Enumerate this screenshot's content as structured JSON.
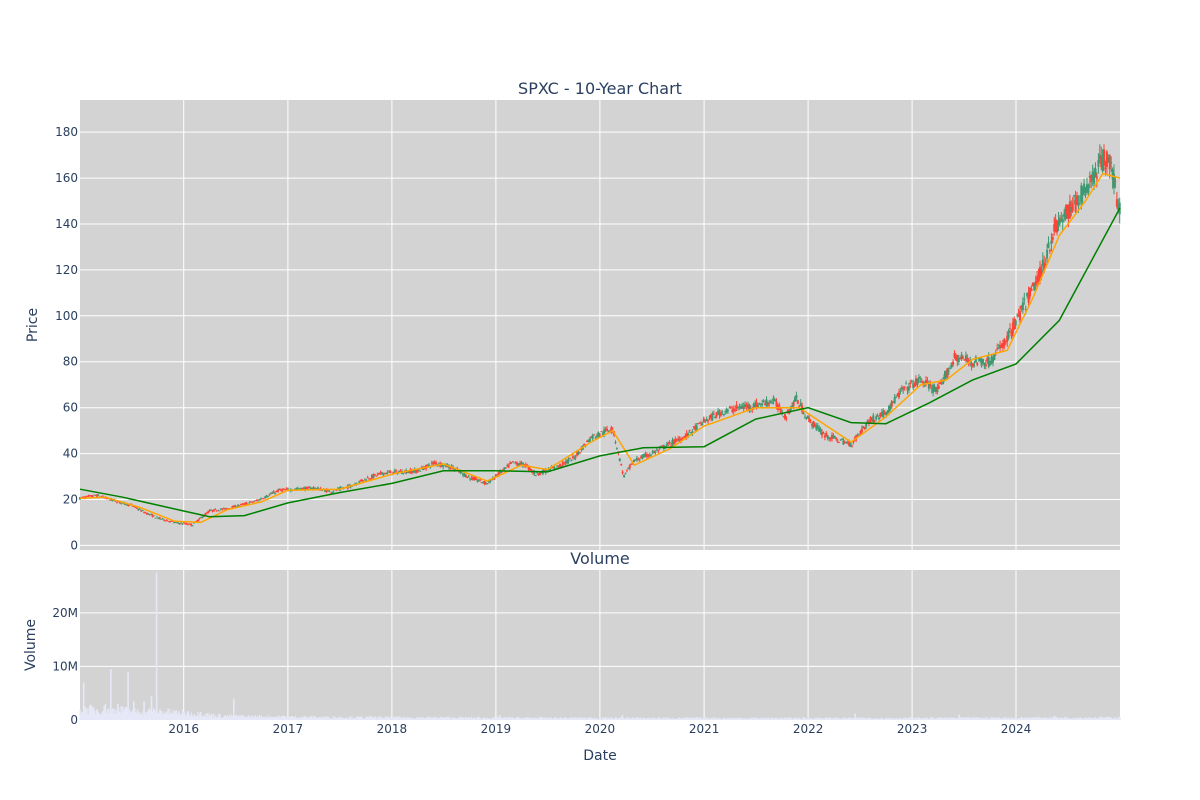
{
  "chart_data": [
    {
      "type": "candlestick",
      "title": "SPXC - 10-Year Chart",
      "ylabel": "Price",
      "xlabel": "",
      "ylim": [
        -2,
        194
      ],
      "xlim": [
        "2015-01-02",
        "2024-12-31"
      ],
      "grid": true,
      "colors": {
        "background": "#d3d3d3",
        "up": "#3d9970",
        "down": "#ff4136",
        "ma_short": "#ffa500",
        "ma_long": "#008000"
      },
      "yticks": [
        {
          "value": 0,
          "label": "0"
        },
        {
          "value": 20,
          "label": "20"
        },
        {
          "value": 40,
          "label": "40"
        },
        {
          "value": 60,
          "label": "60"
        },
        {
          "value": 80,
          "label": "80"
        },
        {
          "value": 100,
          "label": "100"
        },
        {
          "value": 120,
          "label": "120"
        },
        {
          "value": 140,
          "label": "140"
        },
        {
          "value": 160,
          "label": "160"
        },
        {
          "value": 180,
          "label": "180"
        }
      ],
      "price_points": [
        [
          "2015-01-02",
          20.5
        ],
        [
          "2015-03-01",
          21.8
        ],
        [
          "2015-05-01",
          19.5
        ],
        [
          "2015-07-01",
          17.5
        ],
        [
          "2015-08-15",
          14.5
        ],
        [
          "2015-10-01",
          12.0
        ],
        [
          "2015-12-01",
          10.0
        ],
        [
          "2016-02-01",
          9.0
        ],
        [
          "2016-04-01",
          15.0
        ],
        [
          "2016-06-01",
          16.0
        ],
        [
          "2016-08-01",
          18.0
        ],
        [
          "2016-09-15",
          19.5
        ],
        [
          "2016-12-01",
          24.0
        ],
        [
          "2017-02-01",
          24.5
        ],
        [
          "2017-04-01",
          25.0
        ],
        [
          "2017-06-01",
          23.5
        ],
        [
          "2017-08-01",
          25.5
        ],
        [
          "2017-10-01",
          29.0
        ],
        [
          "2017-12-01",
          31.5
        ],
        [
          "2018-02-01",
          32.0
        ],
        [
          "2018-04-01",
          32.5
        ],
        [
          "2018-06-01",
          36.0
        ],
        [
          "2018-08-01",
          34.0
        ],
        [
          "2018-10-01",
          29.5
        ],
        [
          "2018-12-01",
          27.0
        ],
        [
          "2019-03-01",
          36.0
        ],
        [
          "2019-04-15",
          35.0
        ],
        [
          "2019-05-20",
          31.0
        ],
        [
          "2019-08-01",
          34.0
        ],
        [
          "2019-10-01",
          38.0
        ],
        [
          "2019-12-01",
          47.0
        ],
        [
          "2020-02-15",
          51.0
        ],
        [
          "2020-03-25",
          30.0
        ],
        [
          "2020-05-01",
          37.0
        ],
        [
          "2020-07-01",
          40.0
        ],
        [
          "2020-09-01",
          44.0
        ],
        [
          "2020-11-01",
          48.0
        ],
        [
          "2021-01-01",
          54.0
        ],
        [
          "2021-03-01",
          58.0
        ],
        [
          "2021-05-01",
          60.0
        ],
        [
          "2021-07-01",
          61.0
        ],
        [
          "2021-09-01",
          63.0
        ],
        [
          "2021-10-15",
          56.0
        ],
        [
          "2021-11-20",
          64.0
        ],
        [
          "2022-01-01",
          55.0
        ],
        [
          "2022-03-01",
          48.0
        ],
        [
          "2022-04-15",
          46.0
        ],
        [
          "2022-06-01",
          44.0
        ],
        [
          "2022-08-01",
          54.0
        ],
        [
          "2022-10-01",
          58.0
        ],
        [
          "2022-12-01",
          68.0
        ],
        [
          "2023-02-01",
          72.0
        ],
        [
          "2023-04-01",
          67.0
        ],
        [
          "2023-06-01",
          82.0
        ],
        [
          "2023-08-01",
          80.0
        ],
        [
          "2023-10-01",
          80.0
        ],
        [
          "2023-12-01",
          90.0
        ],
        [
          "2024-02-01",
          105.0
        ],
        [
          "2024-04-01",
          120.0
        ],
        [
          "2024-05-15",
          138.0
        ],
        [
          "2024-07-01",
          145.0
        ],
        [
          "2024-09-01",
          155.0
        ],
        [
          "2024-10-15",
          165.0
        ],
        [
          "2024-11-20",
          170.0
        ],
        [
          "2024-12-31",
          145.0
        ]
      ],
      "ma_short": [
        [
          "2015-01-02",
          20.5
        ],
        [
          "2015-04-01",
          21.0
        ],
        [
          "2015-08-01",
          16.5
        ],
        [
          "2015-12-01",
          10.5
        ],
        [
          "2016-03-01",
          10.0
        ],
        [
          "2016-06-01",
          15.5
        ],
        [
          "2016-10-01",
          19.0
        ],
        [
          "2017-01-01",
          24.0
        ],
        [
          "2017-07-01",
          24.5
        ],
        [
          "2018-01-01",
          31.0
        ],
        [
          "2018-07-01",
          35.5
        ],
        [
          "2018-12-01",
          28.0
        ],
        [
          "2019-04-01",
          35.0
        ],
        [
          "2019-07-01",
          33.0
        ],
        [
          "2019-12-01",
          45.0
        ],
        [
          "2020-02-15",
          50.0
        ],
        [
          "2020-05-01",
          35.0
        ],
        [
          "2020-09-01",
          42.0
        ],
        [
          "2021-01-01",
          52.0
        ],
        [
          "2021-07-01",
          60.0
        ],
        [
          "2021-12-01",
          60.0
        ],
        [
          "2022-06-01",
          45.0
        ],
        [
          "2022-10-01",
          56.0
        ],
        [
          "2023-02-01",
          70.0
        ],
        [
          "2023-05-01",
          72.0
        ],
        [
          "2023-08-01",
          81.0
        ],
        [
          "2023-12-01",
          85.0
        ],
        [
          "2024-03-01",
          108.0
        ],
        [
          "2024-06-01",
          135.0
        ],
        [
          "2024-09-01",
          150.0
        ],
        [
          "2024-11-01",
          162.0
        ],
        [
          "2024-12-31",
          160.0
        ]
      ],
      "ma_long": [
        [
          "2015-01-02",
          24.5
        ],
        [
          "2015-06-01",
          21.0
        ],
        [
          "2016-01-01",
          15.0
        ],
        [
          "2016-04-01",
          12.5
        ],
        [
          "2016-08-01",
          13.0
        ],
        [
          "2017-01-01",
          18.5
        ],
        [
          "2017-07-01",
          23.0
        ],
        [
          "2018-01-01",
          27.0
        ],
        [
          "2018-07-01",
          32.5
        ],
        [
          "2019-01-01",
          32.5
        ],
        [
          "2019-07-01",
          32.0
        ],
        [
          "2020-01-01",
          39.0
        ],
        [
          "2020-06-01",
          42.5
        ],
        [
          "2021-01-01",
          43.0
        ],
        [
          "2021-07-01",
          55.0
        ],
        [
          "2022-01-01",
          60.0
        ],
        [
          "2022-06-01",
          53.5
        ],
        [
          "2022-10-01",
          53.0
        ],
        [
          "2023-03-01",
          62.0
        ],
        [
          "2023-08-01",
          72.0
        ],
        [
          "2024-01-01",
          79.0
        ],
        [
          "2024-06-01",
          98.0
        ],
        [
          "2024-12-31",
          147.0
        ]
      ]
    },
    {
      "type": "bar",
      "title": "Volume",
      "ylabel": "Volume",
      "xlabel": "Date",
      "ylim": [
        0,
        28000000
      ],
      "xlim": [
        "2015-01-02",
        "2024-12-31"
      ],
      "grid": true,
      "colors": {
        "background": "#d3d3d3",
        "bar": "#e6e8f8"
      },
      "yticks": [
        {
          "value": 0,
          "label": "0"
        },
        {
          "value": 10000000,
          "label": "10M"
        },
        {
          "value": 20000000,
          "label": "20M"
        }
      ],
      "xticks": [
        {
          "value": "2016-01-01",
          "label": "2016"
        },
        {
          "value": "2017-01-01",
          "label": "2017"
        },
        {
          "value": "2018-01-01",
          "label": "2018"
        },
        {
          "value": "2019-01-01",
          "label": "2019"
        },
        {
          "value": "2020-01-01",
          "label": "2020"
        },
        {
          "value": "2021-01-01",
          "label": "2021"
        },
        {
          "value": "2022-01-01",
          "label": "2022"
        },
        {
          "value": "2023-01-01",
          "label": "2023"
        },
        {
          "value": "2024-01-01",
          "label": "2024"
        }
      ],
      "spikes": [
        [
          "2015-01-15",
          7000000
        ],
        [
          "2015-02-10",
          2500000
        ],
        [
          "2015-04-01",
          3000000
        ],
        [
          "2015-04-20",
          9500000
        ],
        [
          "2015-05-15",
          3000000
        ],
        [
          "2015-06-01",
          2500000
        ],
        [
          "2015-06-20",
          9000000
        ],
        [
          "2015-07-10",
          3500000
        ],
        [
          "2015-08-15",
          3500000
        ],
        [
          "2015-09-10",
          4500000
        ],
        [
          "2015-09-28",
          27500000
        ],
        [
          "2015-10-10",
          2000000
        ],
        [
          "2016-01-15",
          1600000
        ],
        [
          "2016-03-01",
          1500000
        ],
        [
          "2016-06-25",
          4000000
        ],
        [
          "2019-01-15",
          900000
        ],
        [
          "2020-03-20",
          900000
        ],
        [
          "2022-06-15",
          1200000
        ],
        [
          "2023-06-15",
          1000000
        ],
        [
          "2024-05-15",
          800000
        ]
      ],
      "baseline": [
        [
          "2015-01-02",
          2000000
        ],
        [
          "2015-11-01",
          1500000
        ],
        [
          "2016-06-01",
          700000
        ],
        [
          "2017-06-01",
          500000
        ],
        [
          "2019-01-01",
          400000
        ],
        [
          "2021-01-01",
          350000
        ],
        [
          "2023-01-01",
          350000
        ],
        [
          "2024-12-31",
          450000
        ]
      ]
    }
  ]
}
